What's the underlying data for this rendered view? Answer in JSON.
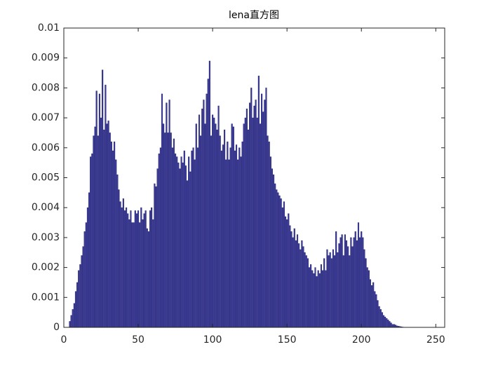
{
  "chart_data": {
    "type": "bar",
    "title": "lena直方图",
    "x": [
      0,
      1,
      2,
      3,
      4,
      5,
      6,
      7,
      8,
      9,
      10,
      11,
      12,
      13,
      14,
      15,
      16,
      17,
      18,
      19,
      20,
      21,
      22,
      23,
      24,
      25,
      26,
      27,
      28,
      29,
      30,
      31,
      32,
      33,
      34,
      35,
      36,
      37,
      38,
      39,
      40,
      41,
      42,
      43,
      44,
      45,
      46,
      47,
      48,
      49,
      50,
      51,
      52,
      53,
      54,
      55,
      56,
      57,
      58,
      59,
      60,
      61,
      62,
      63,
      64,
      65,
      66,
      67,
      68,
      69,
      70,
      71,
      72,
      73,
      74,
      75,
      76,
      77,
      78,
      79,
      80,
      81,
      82,
      83,
      84,
      85,
      86,
      87,
      88,
      89,
      90,
      91,
      92,
      93,
      94,
      95,
      96,
      97,
      98,
      99,
      100,
      101,
      102,
      103,
      104,
      105,
      106,
      107,
      108,
      109,
      110,
      111,
      112,
      113,
      114,
      115,
      116,
      117,
      118,
      119,
      120,
      121,
      122,
      123,
      124,
      125,
      126,
      127,
      128,
      129,
      130,
      131,
      132,
      133,
      134,
      135,
      136,
      137,
      138,
      139,
      140,
      141,
      142,
      143,
      144,
      145,
      146,
      147,
      148,
      149,
      150,
      151,
      152,
      153,
      154,
      155,
      156,
      157,
      158,
      159,
      160,
      161,
      162,
      163,
      164,
      165,
      166,
      167,
      168,
      169,
      170,
      171,
      172,
      173,
      174,
      175,
      176,
      177,
      178,
      179,
      180,
      181,
      182,
      183,
      184,
      185,
      186,
      187,
      188,
      189,
      190,
      191,
      192,
      193,
      194,
      195,
      196,
      197,
      198,
      199,
      200,
      201,
      202,
      203,
      204,
      205,
      206,
      207,
      208,
      209,
      210,
      211,
      212,
      213,
      214,
      215,
      216,
      217,
      218,
      219,
      220,
      221,
      222,
      223,
      224,
      225,
      226,
      227,
      228,
      229,
      230,
      231,
      232,
      233,
      234,
      235,
      236,
      237,
      238,
      239,
      240,
      241,
      242,
      243,
      244,
      245,
      246,
      247,
      248,
      249,
      250,
      251,
      252,
      253,
      254,
      255
    ],
    "values": [
      0,
      0,
      0,
      0,
      0.0002,
      0.0004,
      0.0006,
      0.0008,
      0.0012,
      0.0015,
      0.0019,
      0.0021,
      0.0024,
      0.0027,
      0.0032,
      0.0035,
      0.004,
      0.0045,
      0.0057,
      0.0058,
      0.0064,
      0.0067,
      0.0079,
      0.0064,
      0.0078,
      0.007,
      0.0086,
      0.0066,
      0.0081,
      0.0068,
      0.0069,
      0.0065,
      0.0062,
      0.0059,
      0.0062,
      0.0056,
      0.0051,
      0.0046,
      0.0042,
      0.004,
      0.0043,
      0.0039,
      0.004,
      0.0038,
      0.0036,
      0.0039,
      0.0035,
      0.0035,
      0.0039,
      0.0038,
      0.0039,
      0.0035,
      0.004,
      0.0036,
      0.0038,
      0.0039,
      0.0033,
      0.0032,
      0.0039,
      0.004,
      0.0036,
      0.0048,
      0.0047,
      0.0053,
      0.0058,
      0.006,
      0.0078,
      0.0068,
      0.0065,
      0.0075,
      0.0065,
      0.0076,
      0.0065,
      0.006,
      0.0063,
      0.0058,
      0.0057,
      0.0055,
      0.0053,
      0.0057,
      0.0055,
      0.0059,
      0.0054,
      0.0049,
      0.0057,
      0.0052,
      0.0059,
      0.006,
      0.0056,
      0.0068,
      0.006,
      0.0071,
      0.0064,
      0.0073,
      0.0076,
      0.0068,
      0.0078,
      0.0083,
      0.0089,
      0.0064,
      0.0071,
      0.007,
      0.0068,
      0.0066,
      0.0074,
      0.0064,
      0.0059,
      0.0061,
      0.0066,
      0.0056,
      0.0062,
      0.0056,
      0.006,
      0.0068,
      0.0067,
      0.0059,
      0.0061,
      0.0056,
      0.006,
      0.0057,
      0.0062,
      0.0068,
      0.007,
      0.0073,
      0.0066,
      0.0075,
      0.008,
      0.007,
      0.0074,
      0.0076,
      0.007,
      0.0084,
      0.0068,
      0.0078,
      0.0072,
      0.0076,
      0.008,
      0.0064,
      0.0062,
      0.0057,
      0.0053,
      0.0051,
      0.0048,
      0.0046,
      0.0045,
      0.0044,
      0.0043,
      0.004,
      0.0042,
      0.0037,
      0.0036,
      0.0038,
      0.0034,
      0.0032,
      0.003,
      0.0033,
      0.0029,
      0.0031,
      0.0028,
      0.0026,
      0.0029,
      0.0027,
      0.0025,
      0.0024,
      0.0023,
      0.002,
      0.0021,
      0.0019,
      0.0018,
      0.002,
      0.0017,
      0.0019,
      0.0018,
      0.0021,
      0.0019,
      0.0023,
      0.0019,
      0.0026,
      0.0024,
      0.0025,
      0.0023,
      0.0026,
      0.0024,
      0.0032,
      0.0025,
      0.0028,
      0.003,
      0.0031,
      0.0024,
      0.0031,
      0.0029,
      0.0027,
      0.0024,
      0.003,
      0.0027,
      0.003,
      0.0032,
      0.0029,
      0.0035,
      0.003,
      0.0032,
      0.003,
      0.0026,
      0.0023,
      0.002,
      0.0019,
      0.0016,
      0.0014,
      0.0015,
      0.0012,
      0.0011,
      0.0009,
      0.0007,
      0.0006,
      0.0005,
      0.0004,
      0.00035,
      0.0003,
      0.00025,
      0.0002,
      0.00015,
      0.0001,
      0.0001,
      8e-05,
      5e-05,
      4e-05,
      3e-05,
      2e-05,
      1e-05,
      0,
      0,
      0,
      0,
      0,
      0,
      0,
      0,
      0,
      0,
      0,
      0,
      0,
      0,
      0,
      0,
      0,
      0,
      0,
      0,
      0,
      0,
      0,
      0,
      0,
      0,
      0
    ],
    "color": "#3a3a96",
    "edge_color": "#1c1c70",
    "xlim": [
      0,
      256
    ],
    "xticks": [
      0,
      50,
      100,
      150,
      200,
      250
    ],
    "ylim": [
      0,
      0.01
    ],
    "yticks": [
      0,
      0.001,
      0.002,
      0.003,
      0.004,
      0.005,
      0.006,
      0.007,
      0.008,
      0.009,
      0.01
    ],
    "grid": false
  }
}
